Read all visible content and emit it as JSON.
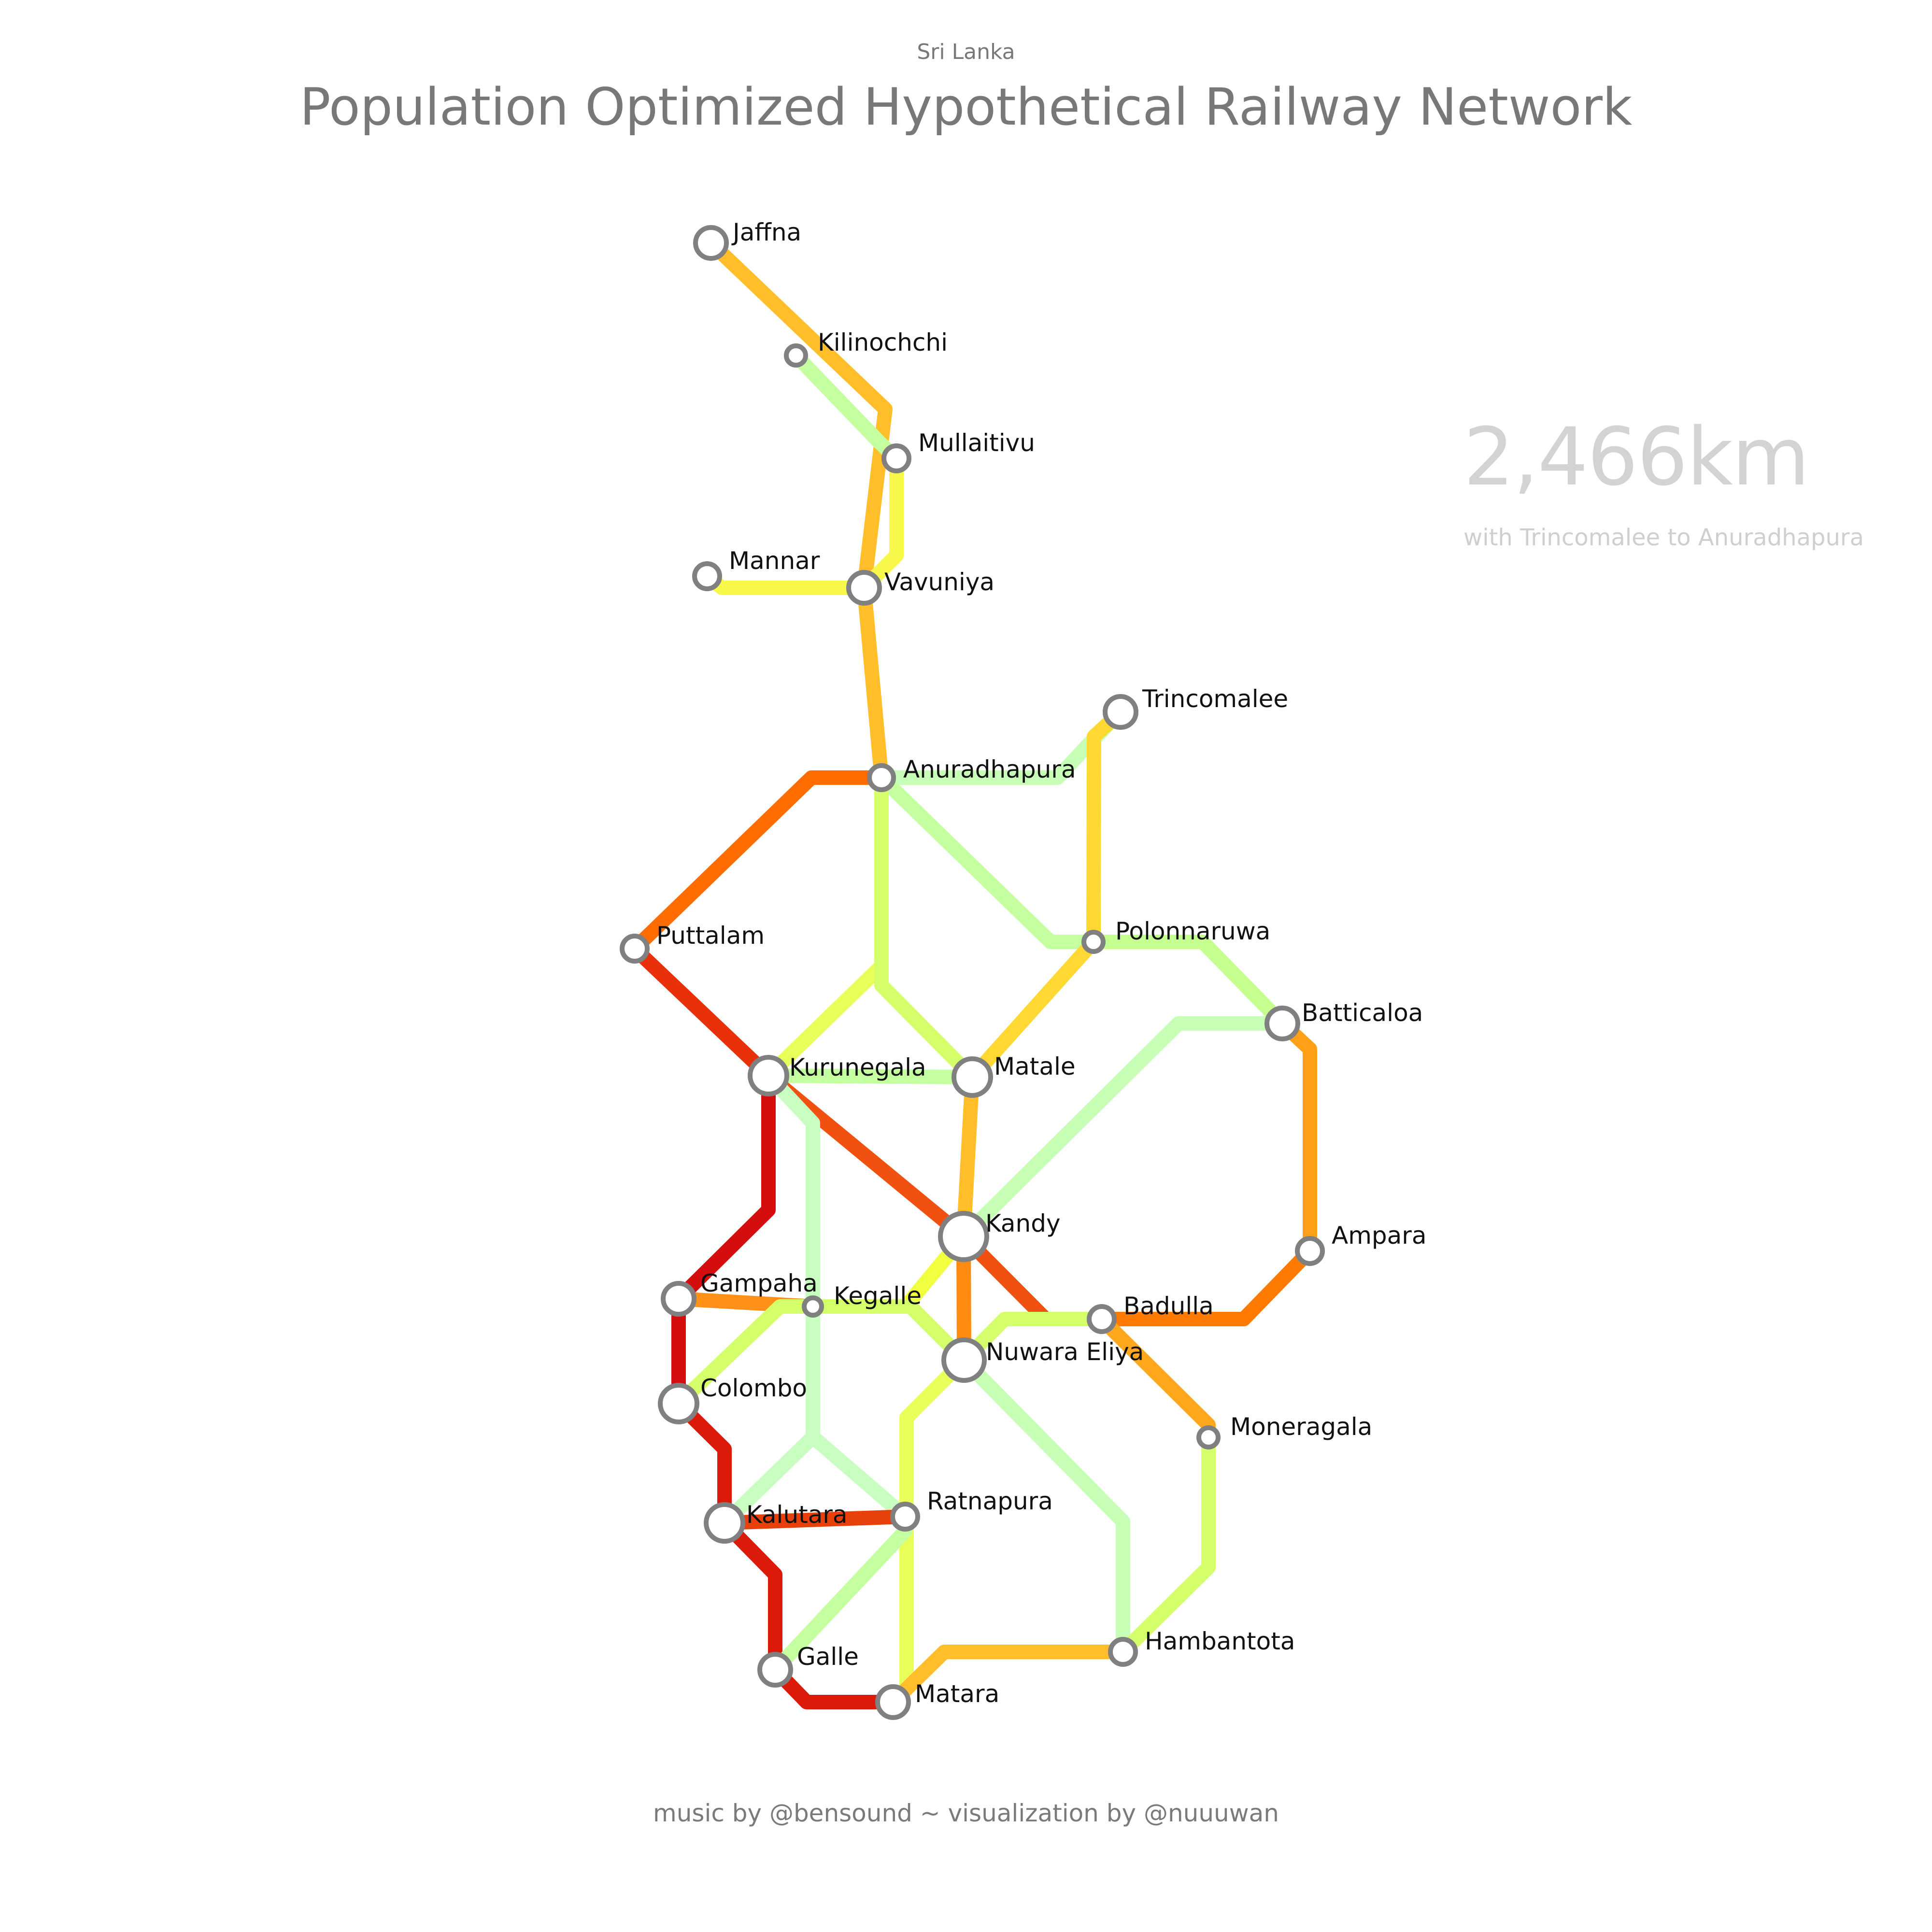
{
  "header": {
    "subtitle": "Sri Lanka",
    "title": "Population Optimized Hypothetical Railway Network"
  },
  "stats": {
    "distance": "2,466km",
    "note": "with Trincomalee to Anuradhapura"
  },
  "footer": "music by @bensound ~ visualization by @nuuuwan",
  "stations": [
    {
      "name": "Jaffna"
    },
    {
      "name": "Kilinochchi"
    },
    {
      "name": "Mullaitivu"
    },
    {
      "name": "Mannar"
    },
    {
      "name": "Vavuniya"
    },
    {
      "name": "Trincomalee"
    },
    {
      "name": "Anuradhapura"
    },
    {
      "name": "Puttalam"
    },
    {
      "name": "Polonnaruwa"
    },
    {
      "name": "Batticaloa"
    },
    {
      "name": "Kurunegala"
    },
    {
      "name": "Matale"
    },
    {
      "name": "Kandy"
    },
    {
      "name": "Ampara"
    },
    {
      "name": "Gampaha"
    },
    {
      "name": "Kegalle"
    },
    {
      "name": "Badulla"
    },
    {
      "name": "Nuwara Eliya"
    },
    {
      "name": "Colombo"
    },
    {
      "name": "Moneragala"
    },
    {
      "name": "Kalutara"
    },
    {
      "name": "Ratnapura"
    },
    {
      "name": "Hambantota"
    },
    {
      "name": "Galle"
    },
    {
      "name": "Matara"
    }
  ],
  "links": [
    {
      "from": "Jaffna",
      "to": "Vavuniya",
      "color": "#FFBE2A"
    },
    {
      "from": "Kilinochchi",
      "to": "Mullaitivu",
      "color": "#C4FFA0"
    },
    {
      "from": "Mullaitivu",
      "to": "Vavuniya",
      "color": "#F8F84A"
    },
    {
      "from": "Mannar",
      "to": "Vavuniya",
      "color": "#F8F84A"
    },
    {
      "from": "Vavuniya",
      "to": "Anuradhapura",
      "color": "#FFBE2A"
    },
    {
      "from": "Anuradhapura",
      "to": "Puttalam",
      "color": "#FF6C00"
    },
    {
      "from": "Anuradhapura",
      "to": "Trincomalee",
      "color": "#C8FFB6"
    },
    {
      "from": "Trincomalee",
      "to": "Polonnaruwa",
      "color": "#FFD833"
    },
    {
      "from": "Anuradhapura",
      "to": "Polonnaruwa",
      "color": "#C4FFA0"
    },
    {
      "from": "Anuradhapura",
      "to": "Kurunegala",
      "color": "#E8FF5A"
    },
    {
      "from": "Anuradhapura",
      "to": "Matale",
      "color": "#D4FF6A"
    },
    {
      "from": "Puttalam",
      "to": "Kurunegala",
      "color": "#E8300A"
    },
    {
      "from": "Polonnaruwa",
      "to": "Batticaloa",
      "color": "#C4FF90"
    },
    {
      "from": "Polonnaruwa",
      "to": "Matale",
      "color": "#FFD833"
    },
    {
      "from": "Kurunegala",
      "to": "Matale",
      "color": "#C4FFA0"
    },
    {
      "from": "Kurunegala",
      "to": "Kandy",
      "color": "#F05010"
    },
    {
      "from": "Kurunegala",
      "to": "Gampaha",
      "color": "#D40E0E"
    },
    {
      "from": "Kurunegala",
      "to": "Kegalle",
      "color": "#C8FFC0"
    },
    {
      "from": "Matale",
      "to": "Kandy",
      "color": "#FFBE2A"
    },
    {
      "from": "Batticaloa",
      "to": "Kandy",
      "color": "#C8FFB6"
    },
    {
      "from": "Batticaloa",
      "to": "Ampara",
      "color": "#FFA018"
    },
    {
      "from": "Kandy",
      "to": "Badulla",
      "color": "#F05010"
    },
    {
      "from": "Ampara",
      "to": "Badulla",
      "color": "#FF7A00"
    },
    {
      "from": "Kandy",
      "to": "Nuwara Eliya",
      "color": "#FF8A10"
    },
    {
      "from": "Kandy",
      "to": "Kegalle",
      "color": "#F0FF40"
    },
    {
      "from": "Gampaha",
      "to": "Kegalle",
      "color": "#FF9018"
    },
    {
      "from": "Gampaha",
      "to": "Colombo",
      "color": "#D40E0E"
    },
    {
      "from": "Kegalle",
      "to": "Colombo",
      "color": "#D4FF6A"
    },
    {
      "from": "Kegalle",
      "to": "Nuwara Eliya",
      "color": "#D4FF6A"
    },
    {
      "from": "Kegalle",
      "to": "Kalutara",
      "color": "#C8FFC0"
    },
    {
      "from": "Kegalle",
      "to": "Ratnapura",
      "color": "#C8FFC0"
    },
    {
      "from": "Badulla",
      "to": "Nuwara Eliya",
      "color": "#D4FF6A"
    },
    {
      "from": "Badulla",
      "to": "Moneragala",
      "color": "#FFA81E"
    },
    {
      "from": "Colombo",
      "to": "Kalutara",
      "color": "#DC1A0A"
    },
    {
      "from": "Nuwara Eliya",
      "to": "Matara",
      "color": "#E8FF5A"
    },
    {
      "from": "Nuwara Eliya",
      "to": "Hambantota",
      "color": "#C8FFB6"
    },
    {
      "from": "Moneragala",
      "to": "Hambantota",
      "color": "#D4FF6A"
    },
    {
      "from": "Kalutara",
      "to": "Ratnapura",
      "color": "#E8400A"
    },
    {
      "from": "Kalutara",
      "to": "Galle",
      "color": "#DC1A0A"
    },
    {
      "from": "Ratnapura",
      "to": "Galle",
      "color": "#C4FFA0"
    },
    {
      "from": "Galle",
      "to": "Matara",
      "color": "#DC1A0A"
    },
    {
      "from": "Matara",
      "to": "Hambantota",
      "color": "#FFBE2A"
    }
  ]
}
